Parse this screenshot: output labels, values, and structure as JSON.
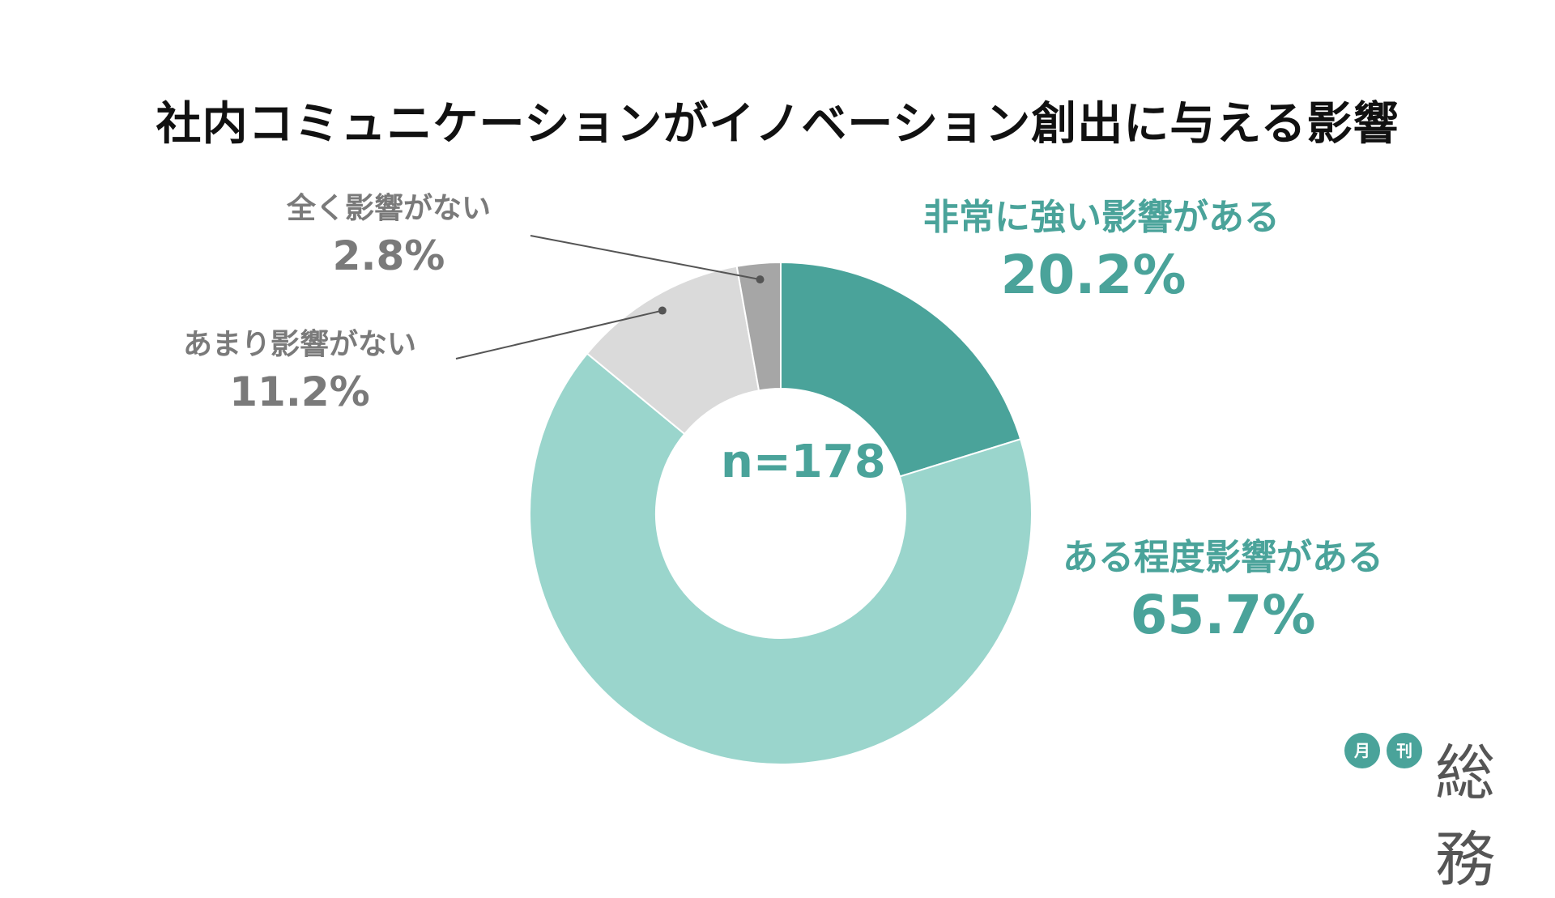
{
  "title": "社内コミュニケーションがイノベーション創出に与える影響",
  "chart_data": {
    "type": "pie",
    "subtype": "donut",
    "center_text": "n=178",
    "slices": [
      {
        "label": "非常に強い影響がある",
        "value": 20.2,
        "value_text": "20.2%",
        "color": "#4aa39a",
        "label_color": "#4aa39a"
      },
      {
        "label": "ある程度影響がある",
        "value": 65.7,
        "value_text": "65.7%",
        "color": "#9ad5cc",
        "label_color": "#4aa39a"
      },
      {
        "label": "あまり影響がない",
        "value": 11.2,
        "value_text": "11.2%",
        "color": "#dadada",
        "label_color": "#7a7a7a"
      },
      {
        "label": "全く影響がない",
        "value": 2.8,
        "value_text": "2.8%",
        "color": "#a6a6a6",
        "label_color": "#7a7a7a"
      }
    ],
    "start": "12 o'clock",
    "direction": "clockwise"
  },
  "logo": {
    "circle1": "月",
    "circle2": "刊",
    "word": "総務",
    "color": "#4aa39a"
  }
}
